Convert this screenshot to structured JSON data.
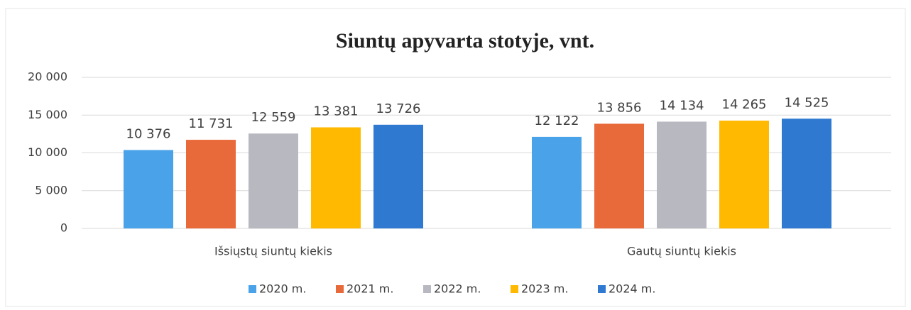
{
  "chart_data": {
    "type": "bar",
    "title": "Siuntų apyvarta stotyje, vnt.",
    "categories": [
      "Išsiųstų siuntų kiekis",
      "Gautų siuntų kiekis"
    ],
    "series": [
      {
        "name": "2020 m.",
        "color": "#4aa3e8",
        "values": [
          10376,
          12122
        ],
        "value_labels": [
          "10 376",
          "12 122"
        ]
      },
      {
        "name": "2021 m.",
        "color": "#e8693a",
        "values": [
          11731,
          13856
        ],
        "value_labels": [
          "11 731",
          "13 856"
        ]
      },
      {
        "name": "2022 m.",
        "color": "#b8b8c0",
        "values": [
          12559,
          14134
        ],
        "value_labels": [
          "12 559",
          "14 134"
        ]
      },
      {
        "name": "2023 m.",
        "color": "#ffb900",
        "values": [
          13381,
          14265
        ],
        "value_labels": [
          "13 381",
          "14 265"
        ]
      },
      {
        "name": "2024 m.",
        "color": "#2f7ad0",
        "values": [
          13726,
          14525
        ],
        "value_labels": [
          "13 726",
          "14 525"
        ]
      }
    ],
    "ylim": [
      0,
      20000
    ],
    "yticks": [
      0,
      {
        "value": 5000,
        "label": "5 000"
      },
      {
        "value": 10000,
        "label": "10 000"
      },
      {
        "value": 15000,
        "label": "15 000"
      },
      {
        "value": 20000,
        "label": "20 000"
      }
    ],
    "grid": true,
    "legend": "bottom"
  }
}
